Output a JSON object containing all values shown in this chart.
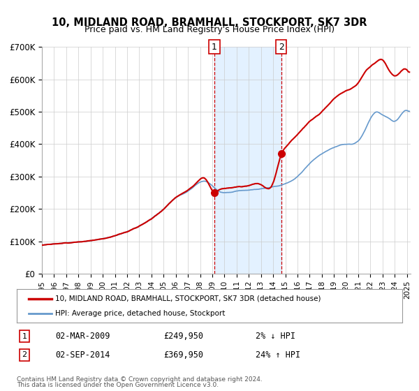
{
  "title": "10, MIDLAND ROAD, BRAMHALL, STOCKPORT, SK7 3DR",
  "subtitle": "Price paid vs. HM Land Registry's House Price Index (HPI)",
  "xlabel": "",
  "ylabel": "",
  "ylim": [
    0,
    700000
  ],
  "xlim_start": 1995.0,
  "xlim_end": 2025.3,
  "yticks": [
    0,
    100000,
    200000,
    300000,
    400000,
    500000,
    600000,
    700000
  ],
  "ytick_labels": [
    "£0",
    "£100K",
    "£200K",
    "£300K",
    "£400K",
    "£500K",
    "£600K",
    "£700K"
  ],
  "xticks": [
    1995,
    1996,
    1997,
    1998,
    1999,
    2000,
    2001,
    2002,
    2003,
    2004,
    2005,
    2006,
    2007,
    2008,
    2009,
    2010,
    2011,
    2012,
    2013,
    2014,
    2015,
    2016,
    2017,
    2018,
    2019,
    2020,
    2021,
    2022,
    2023,
    2024,
    2025
  ],
  "sale1_x": 2009.17,
  "sale1_y": 249950,
  "sale2_x": 2014.67,
  "sale2_y": 369950,
  "shade_x1": 2009.17,
  "shade_x2": 2014.67,
  "bg_color": "#ffffff",
  "grid_color": "#cccccc",
  "hpi_line_color": "#6699cc",
  "price_line_color": "#cc0000",
  "sale_dot_color": "#cc0000",
  "title_fontsize": 11,
  "subtitle_fontsize": 10,
  "legend_label1": "10, MIDLAND ROAD, BRAMHALL, STOCKPORT, SK7 3DR (detached house)",
  "legend_label2": "HPI: Average price, detached house, Stockport",
  "annotation1_label": "1",
  "annotation2_label": "2",
  "table_row1": [
    "1",
    "02-MAR-2009",
    "£249,950",
    "2% ↓ HPI"
  ],
  "table_row2": [
    "2",
    "02-SEP-2014",
    "£369,950",
    "24% ↑ HPI"
  ],
  "footer1": "Contains HM Land Registry data © Crown copyright and database right 2024.",
  "footer2": "This data is licensed under the Open Government Licence v3.0."
}
